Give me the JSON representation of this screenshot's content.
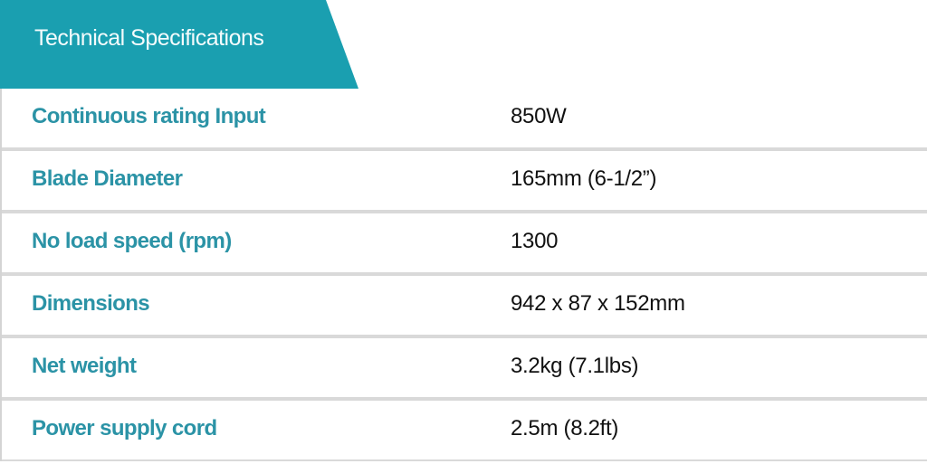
{
  "header": {
    "title": "Technical Specifications",
    "accent_color": "#1a9fb0"
  },
  "specs": [
    {
      "label": "Continuous rating Input",
      "value": "850W"
    },
    {
      "label": "Blade Diameter",
      "value": "165mm (6-1/2”)"
    },
    {
      "label": "No load speed (rpm)",
      "value": "1300"
    },
    {
      "label": "Dimensions",
      "value": "942 x 87 x 152mm"
    },
    {
      "label": "Net weight",
      "value": "3.2kg (7.1lbs)"
    },
    {
      "label": "Power supply cord",
      "value": "2.5m (8.2ft)"
    }
  ]
}
